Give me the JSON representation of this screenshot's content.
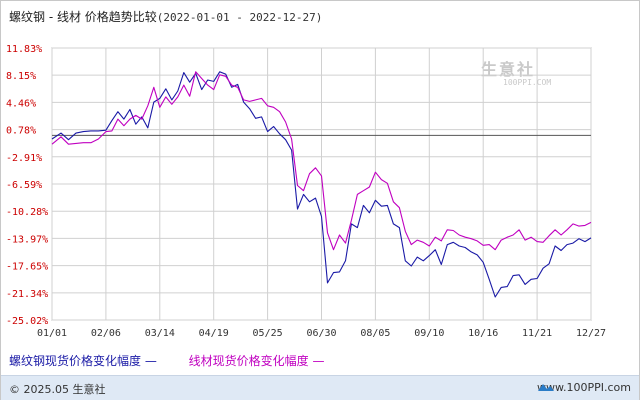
{
  "header": {
    "title": "螺纹钢 - 线材 价格趋势比较",
    "range": "(2022-01-01 - 2022-12-27)"
  },
  "watermark": {
    "text": "生意社",
    "url": "100PPI.COM"
  },
  "footer": {
    "copyright": "© 2025.05 生意社",
    "site": "www.100PPI.com"
  },
  "legend": {
    "rebar": "螺纹钢现货价格变化幅度",
    "wire": "线材现货价格变化幅度"
  },
  "colors": {
    "rebar": "#1a1aa6",
    "wire": "#c000c0",
    "axis_labels": "#cc0000",
    "grid": "#d0d0d0"
  },
  "chart_data": {
    "type": "line",
    "title": "螺纹钢 - 线材 价格趋势比较",
    "xlabel": "",
    "ylabel": "",
    "y_ticks": [
      "11.83%",
      "8.15%",
      "4.46%",
      "0.78%",
      "-2.91%",
      "-6.59%",
      "-10.28%",
      "-13.97%",
      "-17.65%",
      "-21.34%",
      "-25.02%"
    ],
    "ylim": [
      -25.02,
      11.83
    ],
    "baseline": 0,
    "x_ticks": [
      "01/01",
      "02/06",
      "03/14",
      "04/19",
      "05/25",
      "06/30",
      "08/05",
      "09/10",
      "10/16",
      "11/21",
      "12/27"
    ],
    "x_range": [
      "01/01",
      "12/27"
    ],
    "grid": true,
    "legend_position": "bottom",
    "series": [
      {
        "name": "螺纹钢现货价格变化幅度",
        "color": "#1a1aa6",
        "points": [
          [
            "01/01",
            -0.5
          ],
          [
            "01/07",
            0.3
          ],
          [
            "01/12",
            -0.6
          ],
          [
            "01/17",
            0.3
          ],
          [
            "01/22",
            0.5
          ],
          [
            "01/27",
            0.6
          ],
          [
            "02/01",
            0.6
          ],
          [
            "02/06",
            0.7
          ],
          [
            "02/10",
            2.0
          ],
          [
            "02/14",
            3.2
          ],
          [
            "02/18",
            2.2
          ],
          [
            "02/22",
            3.5
          ],
          [
            "02/26",
            1.5
          ],
          [
            "03/02",
            2.5
          ],
          [
            "03/06",
            1.0
          ],
          [
            "03/10",
            4.5
          ],
          [
            "03/14",
            5.0
          ],
          [
            "03/18",
            6.3
          ],
          [
            "03/22",
            4.8
          ],
          [
            "03/26",
            6.0
          ],
          [
            "03/30",
            8.5
          ],
          [
            "04/03",
            7.2
          ],
          [
            "04/07",
            8.4
          ],
          [
            "04/11",
            6.2
          ],
          [
            "04/15",
            7.5
          ],
          [
            "04/19",
            7.3
          ],
          [
            "04/23",
            8.6
          ],
          [
            "04/27",
            8.3
          ],
          [
            "05/01",
            6.5
          ],
          [
            "05/05",
            6.9
          ],
          [
            "05/09",
            4.5
          ],
          [
            "05/13",
            3.6
          ],
          [
            "05/17",
            2.3
          ],
          [
            "05/21",
            2.5
          ],
          [
            "05/25",
            0.5
          ],
          [
            "05/29",
            1.2
          ],
          [
            "06/02",
            0.2
          ],
          [
            "06/06",
            -0.6
          ],
          [
            "06/10",
            -2.0
          ],
          [
            "06/14",
            -10.0
          ],
          [
            "06/18",
            -8.0
          ],
          [
            "06/22",
            -9.0
          ],
          [
            "06/26",
            -8.5
          ],
          [
            "06/30",
            -11.0
          ],
          [
            "07/04",
            -20.0
          ],
          [
            "07/08",
            -18.6
          ],
          [
            "07/12",
            -18.5
          ],
          [
            "07/16",
            -17.0
          ],
          [
            "07/20",
            -12.0
          ],
          [
            "07/24",
            -12.5
          ],
          [
            "07/28",
            -9.5
          ],
          [
            "08/01",
            -10.5
          ],
          [
            "08/05",
            -8.8
          ],
          [
            "08/09",
            -9.6
          ],
          [
            "08/13",
            -9.5
          ],
          [
            "08/17",
            -12.0
          ],
          [
            "08/21",
            -12.5
          ],
          [
            "08/25",
            -17.0
          ],
          [
            "08/29",
            -17.7
          ],
          [
            "09/02",
            -16.5
          ],
          [
            "09/06",
            -17.0
          ],
          [
            "09/10",
            -16.3
          ],
          [
            "09/14",
            -15.5
          ],
          [
            "09/18",
            -17.5
          ],
          [
            "09/22",
            -14.8
          ],
          [
            "09/26",
            -14.5
          ],
          [
            "09/30",
            -15.0
          ],
          [
            "10/04",
            -15.2
          ],
          [
            "10/08",
            -15.8
          ],
          [
            "10/12",
            -16.2
          ],
          [
            "10/16",
            -17.2
          ],
          [
            "10/20",
            -19.5
          ],
          [
            "10/24",
            -21.9
          ],
          [
            "10/28",
            -20.6
          ],
          [
            "11/01",
            -20.5
          ],
          [
            "11/05",
            -19.0
          ],
          [
            "11/09",
            -18.9
          ],
          [
            "11/13",
            -20.2
          ],
          [
            "11/17",
            -19.5
          ],
          [
            "11/21",
            -19.4
          ],
          [
            "11/25",
            -18.0
          ],
          [
            "11/29",
            -17.4
          ],
          [
            "12/03",
            -15.0
          ],
          [
            "12/07",
            -15.6
          ],
          [
            "12/11",
            -14.8
          ],
          [
            "12/15",
            -14.6
          ],
          [
            "12/19",
            -14.0
          ],
          [
            "12/23",
            -14.4
          ],
          [
            "12/27",
            -13.9
          ]
        ]
      },
      {
        "name": "线材现货价格变化幅度",
        "color": "#c000c0",
        "points": [
          [
            "01/01",
            -1.2
          ],
          [
            "01/07",
            -0.2
          ],
          [
            "01/12",
            -1.2
          ],
          [
            "01/17",
            -1.1
          ],
          [
            "01/22",
            -1.0
          ],
          [
            "01/27",
            -1.0
          ],
          [
            "02/01",
            -0.5
          ],
          [
            "02/06",
            0.5
          ],
          [
            "02/10",
            0.6
          ],
          [
            "02/14",
            2.2
          ],
          [
            "02/18",
            1.3
          ],
          [
            "02/22",
            2.2
          ],
          [
            "02/26",
            2.7
          ],
          [
            "03/02",
            2.2
          ],
          [
            "03/06",
            4.0
          ],
          [
            "03/10",
            6.5
          ],
          [
            "03/14",
            3.8
          ],
          [
            "03/18",
            5.2
          ],
          [
            "03/22",
            4.2
          ],
          [
            "03/26",
            5.2
          ],
          [
            "03/30",
            6.8
          ],
          [
            "04/03",
            5.3
          ],
          [
            "04/07",
            8.6
          ],
          [
            "04/11",
            7.7
          ],
          [
            "04/15",
            6.8
          ],
          [
            "04/19",
            6.2
          ],
          [
            "04/23",
            8.2
          ],
          [
            "04/27",
            8.0
          ],
          [
            "05/01",
            6.8
          ],
          [
            "05/05",
            6.5
          ],
          [
            "05/09",
            4.8
          ],
          [
            "05/13",
            4.6
          ],
          [
            "05/17",
            4.8
          ],
          [
            "05/21",
            5.0
          ],
          [
            "05/25",
            4.0
          ],
          [
            "05/29",
            3.8
          ],
          [
            "06/02",
            3.2
          ],
          [
            "06/06",
            1.8
          ],
          [
            "06/10",
            -0.5
          ],
          [
            "06/14",
            -6.8
          ],
          [
            "06/18",
            -7.5
          ],
          [
            "06/22",
            -5.2
          ],
          [
            "06/26",
            -4.4
          ],
          [
            "06/30",
            -5.5
          ],
          [
            "07/04",
            -13.2
          ],
          [
            "07/08",
            -15.5
          ],
          [
            "07/12",
            -13.5
          ],
          [
            "07/16",
            -14.6
          ],
          [
            "07/20",
            -11.5
          ],
          [
            "07/24",
            -8.0
          ],
          [
            "07/28",
            -7.5
          ],
          [
            "08/01",
            -7.0
          ],
          [
            "08/05",
            -5.0
          ],
          [
            "08/09",
            -6.0
          ],
          [
            "08/13",
            -6.5
          ],
          [
            "08/17",
            -9.0
          ],
          [
            "08/21",
            -9.8
          ],
          [
            "08/25",
            -13.0
          ],
          [
            "08/29",
            -14.8
          ],
          [
            "09/02",
            -14.2
          ],
          [
            "09/06",
            -14.5
          ],
          [
            "09/10",
            -15.0
          ],
          [
            "09/14",
            -13.8
          ],
          [
            "09/18",
            -14.3
          ],
          [
            "09/22",
            -12.8
          ],
          [
            "09/26",
            -12.9
          ],
          [
            "09/30",
            -13.5
          ],
          [
            "10/04",
            -13.8
          ],
          [
            "10/08",
            -14.0
          ],
          [
            "10/12",
            -14.3
          ],
          [
            "10/16",
            -14.9
          ],
          [
            "10/20",
            -14.8
          ],
          [
            "10/24",
            -15.5
          ],
          [
            "10/28",
            -14.2
          ],
          [
            "11/01",
            -13.8
          ],
          [
            "11/05",
            -13.5
          ],
          [
            "11/09",
            -12.8
          ],
          [
            "11/13",
            -14.2
          ],
          [
            "11/17",
            -13.8
          ],
          [
            "11/21",
            -14.4
          ],
          [
            "11/25",
            -14.5
          ],
          [
            "11/29",
            -13.6
          ],
          [
            "12/03",
            -12.8
          ],
          [
            "12/07",
            -13.5
          ],
          [
            "12/11",
            -12.8
          ],
          [
            "12/15",
            -12.0
          ],
          [
            "12/19",
            -12.3
          ],
          [
            "12/23",
            -12.2
          ],
          [
            "12/27",
            -11.8
          ]
        ]
      }
    ]
  }
}
